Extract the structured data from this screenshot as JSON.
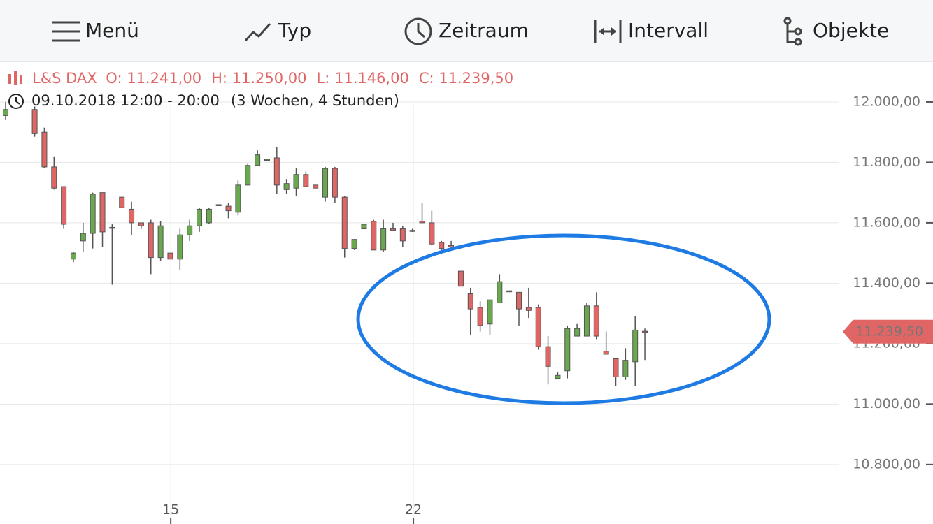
{
  "toolbar": {
    "items": [
      "Menü",
      "Typ",
      "Zeitraum",
      "Intervall",
      "Objekte"
    ]
  },
  "chart_data": {
    "type": "candlestick",
    "title": "L&S DAX",
    "ohlc_labels": [
      "O: 11.241,00",
      "H: 11.250,00",
      "L: 11.146,00",
      "C: 11.239,50"
    ],
    "subtitle": "09.10.2018 12:00 - 20:00",
    "range_note": "(3 Wochen, 4 Stunden)",
    "x": [
      0,
      3,
      4,
      5,
      6,
      7,
      8,
      9,
      10,
      11,
      12,
      13,
      14,
      15,
      16,
      17,
      18,
      19,
      20,
      21,
      22,
      23,
      24,
      25,
      26,
      27,
      28,
      29,
      30,
      31,
      32,
      33,
      34,
      35,
      36,
      37,
      38,
      39,
      40,
      41,
      42,
      43,
      44,
      45,
      46,
      47,
      48,
      49,
      50,
      51,
      52,
      53,
      54,
      55,
      56,
      57,
      58,
      59,
      60,
      61,
      62,
      63,
      64,
      65,
      66
    ],
    "open": [
      11955,
      11975,
      11900,
      11785,
      11720,
      11480,
      11540,
      11565,
      11700,
      11585,
      11685,
      11645,
      11600,
      11600,
      11485,
      11500,
      11480,
      11560,
      11590,
      11600,
      11660,
      11655,
      11635,
      11725,
      11790,
      11810,
      11815,
      11710,
      11715,
      11760,
      11725,
      11685,
      11780,
      11685,
      11515,
      11580,
      11605,
      11510,
      11580,
      11580,
      11575,
      11605,
      11600,
      11535,
      11525,
      11440,
      11365,
      11320,
      11265,
      11335,
      11375,
      11370,
      11320,
      11320,
      11190,
      11085,
      11110,
      11225,
      11225,
      11325,
      11175,
      11150,
      11090,
      11140,
      11241
    ],
    "high": [
      12000,
      11985,
      11915,
      11820,
      11720,
      11505,
      11600,
      11700,
      11700,
      11595,
      11685,
      11670,
      11600,
      11610,
      11605,
      11500,
      11580,
      11610,
      11650,
      11650,
      11660,
      11665,
      11740,
      11795,
      11840,
      11810,
      11850,
      11745,
      11780,
      11770,
      11725,
      11785,
      11785,
      11690,
      11545,
      11595,
      11610,
      11610,
      11600,
      11590,
      11580,
      11665,
      11640,
      11540,
      11540,
      11440,
      11385,
      11340,
      11345,
      11430,
      11375,
      11370,
      11385,
      11330,
      11225,
      11105,
      11260,
      11265,
      11335,
      11370,
      11240,
      11150,
      11185,
      11290,
      11250
    ],
    "low": [
      11940,
      11885,
      11780,
      11710,
      11580,
      11470,
      11505,
      11515,
      11520,
      11395,
      11650,
      11560,
      11580,
      11430,
      11475,
      11480,
      11445,
      11540,
      11570,
      11595,
      11660,
      11615,
      11625,
      11725,
      11790,
      11810,
      11695,
      11695,
      11690,
      11720,
      11715,
      11670,
      11665,
      11485,
      11510,
      11580,
      11510,
      11505,
      11575,
      11520,
      11570,
      11600,
      11525,
      11505,
      11515,
      11390,
      11230,
      11240,
      11230,
      11335,
      11375,
      11260,
      11285,
      11180,
      11065,
      11085,
      11085,
      11225,
      11225,
      11215,
      11165,
      11060,
      11080,
      11060,
      11146
    ],
    "close": [
      11975,
      11895,
      11785,
      11715,
      11595,
      11500,
      11565,
      11695,
      11570,
      11585,
      11650,
      11600,
      11590,
      11485,
      11590,
      11480,
      11560,
      11590,
      11645,
      11645,
      11660,
      11640,
      11725,
      11790,
      11825,
      11810,
      11725,
      11730,
      11760,
      11720,
      11715,
      11780,
      11685,
      11515,
      11545,
      11595,
      11510,
      11580,
      11575,
      11540,
      11575,
      11600,
      11530,
      11515,
      11520,
      11390,
      11315,
      11260,
      11345,
      11405,
      11375,
      11315,
      11310,
      11190,
      11125,
      11095,
      11250,
      11250,
      11325,
      11225,
      11165,
      11090,
      11145,
      11245,
      11239.5
    ],
    "up_color": "#6aa84f",
    "down_color": "#e06666",
    "xlim": [
      -0.58,
      86.07
    ],
    "xticks": [
      {
        "value": 17.05,
        "label": "15"
      },
      {
        "value": 42.1,
        "label": "22"
      }
    ],
    "ylim": [
      10603,
      12134
    ],
    "yticks": [
      {
        "value": 10800,
        "label": "10.800,00"
      },
      {
        "value": 11000,
        "label": "11.000,00"
      },
      {
        "value": 11200,
        "label": "11.200,00"
      },
      {
        "value": 11400,
        "label": "11.400,00"
      },
      {
        "value": 11600,
        "label": "11.600,00"
      },
      {
        "value": 11800,
        "label": "11.800,00"
      },
      {
        "value": 12000,
        "label": "12.000,00"
      }
    ],
    "grid": true,
    "last_price": {
      "value": 11239.5,
      "label": "11.239,50"
    }
  }
}
